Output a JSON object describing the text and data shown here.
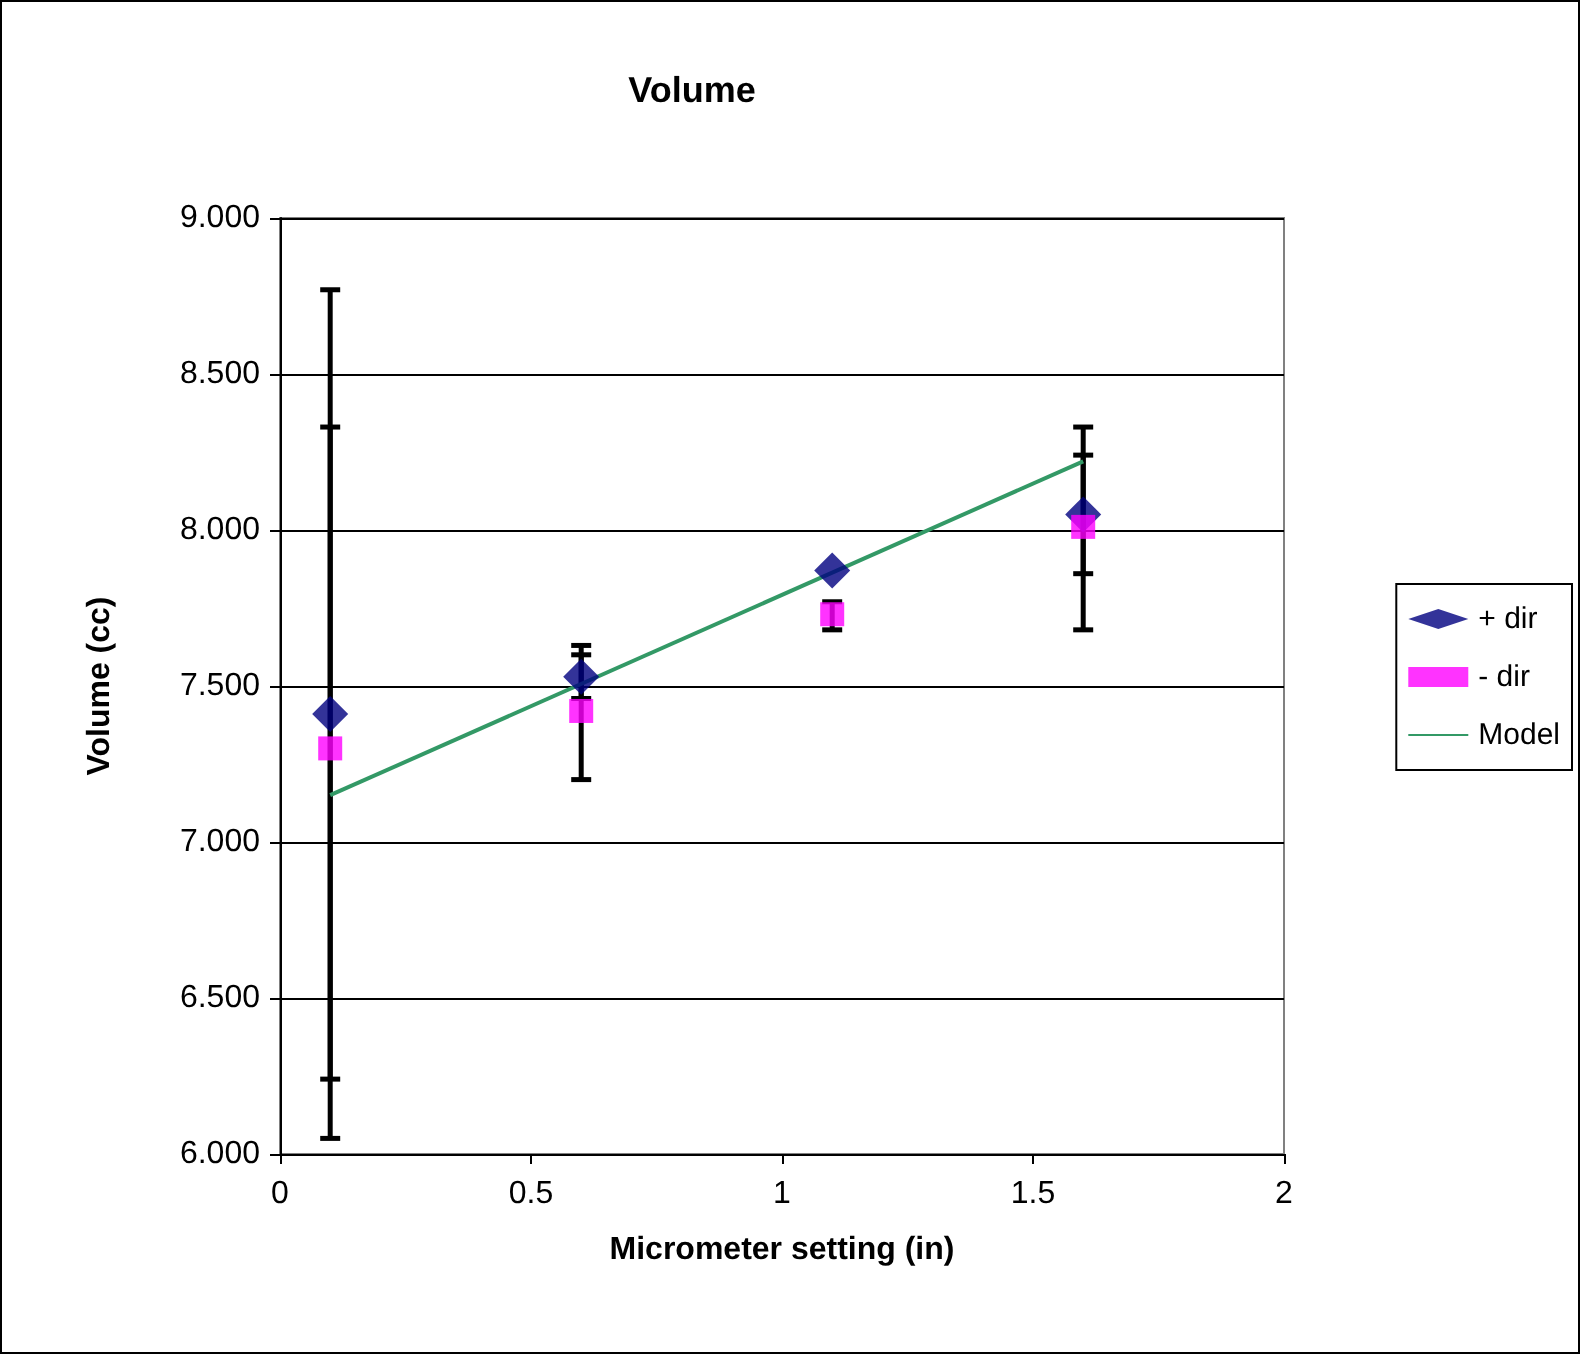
{
  "chart_data": {
    "type": "scatter",
    "title": "Volume",
    "xlabel": "Micrometer setting (in)",
    "ylabel": "Volume (cc)",
    "xlim": [
      0,
      2
    ],
    "xticks": [
      0,
      0.5,
      1,
      1.5,
      2
    ],
    "ylim": [
      6,
      9
    ],
    "yticks": [
      {
        "value": 6,
        "label": "6.000"
      },
      {
        "value": 6.5,
        "label": "6.500"
      },
      {
        "value": 7,
        "label": "7.000"
      },
      {
        "value": 7.5,
        "label": "7.500"
      },
      {
        "value": 8,
        "label": "8.000"
      },
      {
        "value": 8.5,
        "label": "8.500"
      },
      {
        "value": 9,
        "label": "9.000"
      }
    ],
    "grid": "y",
    "legend": "right",
    "series": [
      {
        "name": "+ dir",
        "marker": "diamond",
        "color": "#000080",
        "x": [
          0.1,
          0.6,
          1.1,
          1.6
        ],
        "values": [
          7.41,
          7.53,
          7.87,
          8.05
        ],
        "errors": [
          [
            6.05,
            8.77
          ],
          [
            7.46,
            7.6
          ],
          null,
          [
            7.86,
            8.24
          ]
        ]
      },
      {
        "name": "- dir",
        "marker": "square",
        "color": "#ff00ff",
        "x": [
          0.1,
          0.6,
          1.1,
          1.6
        ],
        "values": [
          7.3,
          7.42,
          7.73,
          8.01
        ],
        "errors": [
          [
            6.24,
            8.33
          ],
          [
            7.2,
            7.63
          ],
          [
            7.68,
            7.77
          ],
          [
            7.68,
            8.33
          ]
        ]
      },
      {
        "name": "Model",
        "type": "line",
        "marker": "none",
        "color": "#339966",
        "x": [
          0.1,
          1.6
        ],
        "values": [
          7.15,
          8.22
        ]
      }
    ]
  }
}
